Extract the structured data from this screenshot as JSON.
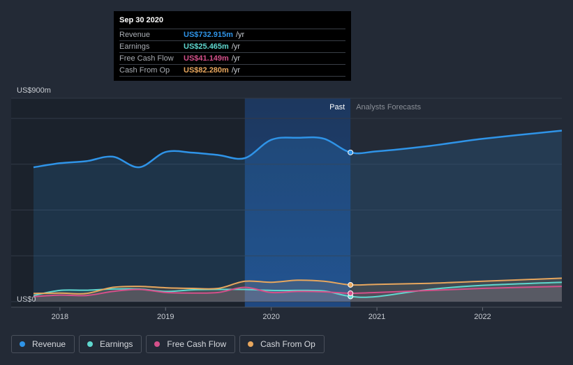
{
  "tooltip": {
    "date": "Sep 30 2020",
    "rows": [
      {
        "label": "Revenue",
        "value": "US$732.915m",
        "unit": "/yr",
        "color": "#2f94e8"
      },
      {
        "label": "Earnings",
        "value": "US$25.465m",
        "unit": "/yr",
        "color": "#5fd8cf"
      },
      {
        "label": "Free Cash Flow",
        "value": "US$41.149m",
        "unit": "/yr",
        "color": "#d4508a"
      },
      {
        "label": "Cash From Op",
        "value": "US$82.280m",
        "unit": "/yr",
        "color": "#e8a75e"
      }
    ]
  },
  "legend": [
    {
      "label": "Revenue",
      "color": "#2f94e8"
    },
    {
      "label": "Earnings",
      "color": "#5fd8cf"
    },
    {
      "label": "Free Cash Flow",
      "color": "#d4508a"
    },
    {
      "label": "Cash From Op",
      "color": "#e8a75e"
    }
  ],
  "chart_data": {
    "type": "line",
    "y_top_label": "US$900m",
    "y_bottom_label": "US$0",
    "ylim": [
      0,
      900
    ],
    "xlim": [
      2017.75,
      2022.75
    ],
    "x_ticks": [
      2018,
      2019,
      2020,
      2021,
      2022
    ],
    "past_label": "Past",
    "forecast_label": "Analysts Forecasts",
    "past_end": 2020.75,
    "highlight_start": 2019.75,
    "series": [
      {
        "name": "Revenue",
        "color": "#2f94e8",
        "points": [
          [
            2017.75,
            660
          ],
          [
            2018.0,
            680
          ],
          [
            2018.25,
            690
          ],
          [
            2018.5,
            712
          ],
          [
            2018.75,
            660
          ],
          [
            2019.0,
            735
          ],
          [
            2019.25,
            732
          ],
          [
            2019.5,
            720
          ],
          [
            2019.75,
            705
          ],
          [
            2020.0,
            795
          ],
          [
            2020.25,
            805
          ],
          [
            2020.5,
            800
          ],
          [
            2020.75,
            732.9
          ],
          [
            2021.0,
            738
          ],
          [
            2021.5,
            765
          ],
          [
            2022.0,
            800
          ],
          [
            2022.75,
            840
          ]
        ]
      },
      {
        "name": "Earnings",
        "color": "#5fd8cf",
        "points": [
          [
            2017.75,
            30
          ],
          [
            2018.0,
            55
          ],
          [
            2018.25,
            56
          ],
          [
            2018.5,
            62
          ],
          [
            2018.75,
            62
          ],
          [
            2019.0,
            50
          ],
          [
            2019.25,
            58
          ],
          [
            2019.5,
            60
          ],
          [
            2019.75,
            60
          ],
          [
            2020.0,
            55
          ],
          [
            2020.25,
            55
          ],
          [
            2020.5,
            52
          ],
          [
            2020.75,
            25.5
          ],
          [
            2021.0,
            25
          ],
          [
            2021.5,
            60
          ],
          [
            2022.0,
            80
          ],
          [
            2022.75,
            95
          ]
        ]
      },
      {
        "name": "Free Cash Flow",
        "color": "#d4508a",
        "points": [
          [
            2017.75,
            25
          ],
          [
            2018.0,
            32
          ],
          [
            2018.25,
            30
          ],
          [
            2018.5,
            50
          ],
          [
            2018.75,
            60
          ],
          [
            2019.0,
            45
          ],
          [
            2019.25,
            42
          ],
          [
            2019.5,
            45
          ],
          [
            2019.75,
            70
          ],
          [
            2020.0,
            45
          ],
          [
            2020.25,
            50
          ],
          [
            2020.5,
            48
          ],
          [
            2020.75,
            41.1
          ],
          [
            2021.0,
            45
          ],
          [
            2021.5,
            55
          ],
          [
            2022.0,
            65
          ],
          [
            2022.75,
            75
          ]
        ]
      },
      {
        "name": "Cash From Op",
        "color": "#e8a75e",
        "points": [
          [
            2017.75,
            40
          ],
          [
            2018.0,
            42
          ],
          [
            2018.25,
            40
          ],
          [
            2018.5,
            70
          ],
          [
            2018.75,
            75
          ],
          [
            2019.0,
            68
          ],
          [
            2019.25,
            65
          ],
          [
            2019.5,
            65
          ],
          [
            2019.75,
            100
          ],
          [
            2020.0,
            95
          ],
          [
            2020.25,
            105
          ],
          [
            2020.5,
            100
          ],
          [
            2020.75,
            82.3
          ],
          [
            2021.0,
            85
          ],
          [
            2021.5,
            90
          ],
          [
            2022.0,
            100
          ],
          [
            2022.75,
            115
          ]
        ]
      }
    ]
  }
}
